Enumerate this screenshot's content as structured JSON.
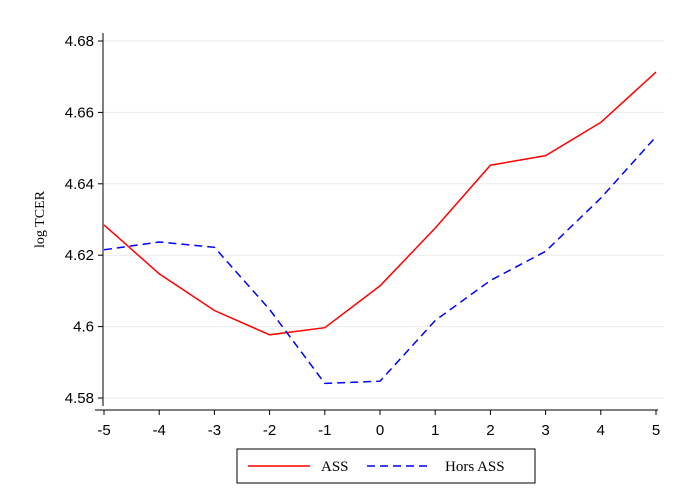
{
  "chart_data": {
    "type": "line",
    "x": [
      -5,
      -4,
      -3,
      -2,
      -1,
      0,
      1,
      2,
      3,
      4,
      5
    ],
    "series": [
      {
        "name": "ASS",
        "color": "#ff0000",
        "dash": "solid",
        "values": [
          4.6285,
          4.6148,
          4.6045,
          4.5977,
          4.5997,
          4.6114,
          4.6276,
          4.6452,
          4.6479,
          4.6572,
          4.6713
        ]
      },
      {
        "name": "Hors ASS",
        "color": "#0000ff",
        "dash": "dashed",
        "values": [
          4.6215,
          4.6237,
          4.6222,
          4.6048,
          4.5841,
          4.5847,
          4.6017,
          4.6129,
          4.6211,
          4.636,
          4.6532
        ]
      }
    ],
    "title": "",
    "xlabel": "",
    "ylabel": "log TCER",
    "xlim": [
      -5,
      5
    ],
    "ylim": [
      4.58,
      4.68
    ],
    "xticks": [
      "-5",
      "-4",
      "-3",
      "-2",
      "-1",
      "0",
      "1",
      "2",
      "3",
      "4",
      "5"
    ],
    "yticks": [
      {
        "value": 4.58,
        "label": "4.58"
      },
      {
        "value": 4.6,
        "label": "4.6"
      },
      {
        "value": 4.62,
        "label": "4.62"
      },
      {
        "value": 4.64,
        "label": "4.64"
      },
      {
        "value": 4.66,
        "label": "4.66"
      },
      {
        "value": 4.68,
        "label": "4.68"
      }
    ],
    "grid": "horizontal",
    "legend_position": "bottom"
  }
}
